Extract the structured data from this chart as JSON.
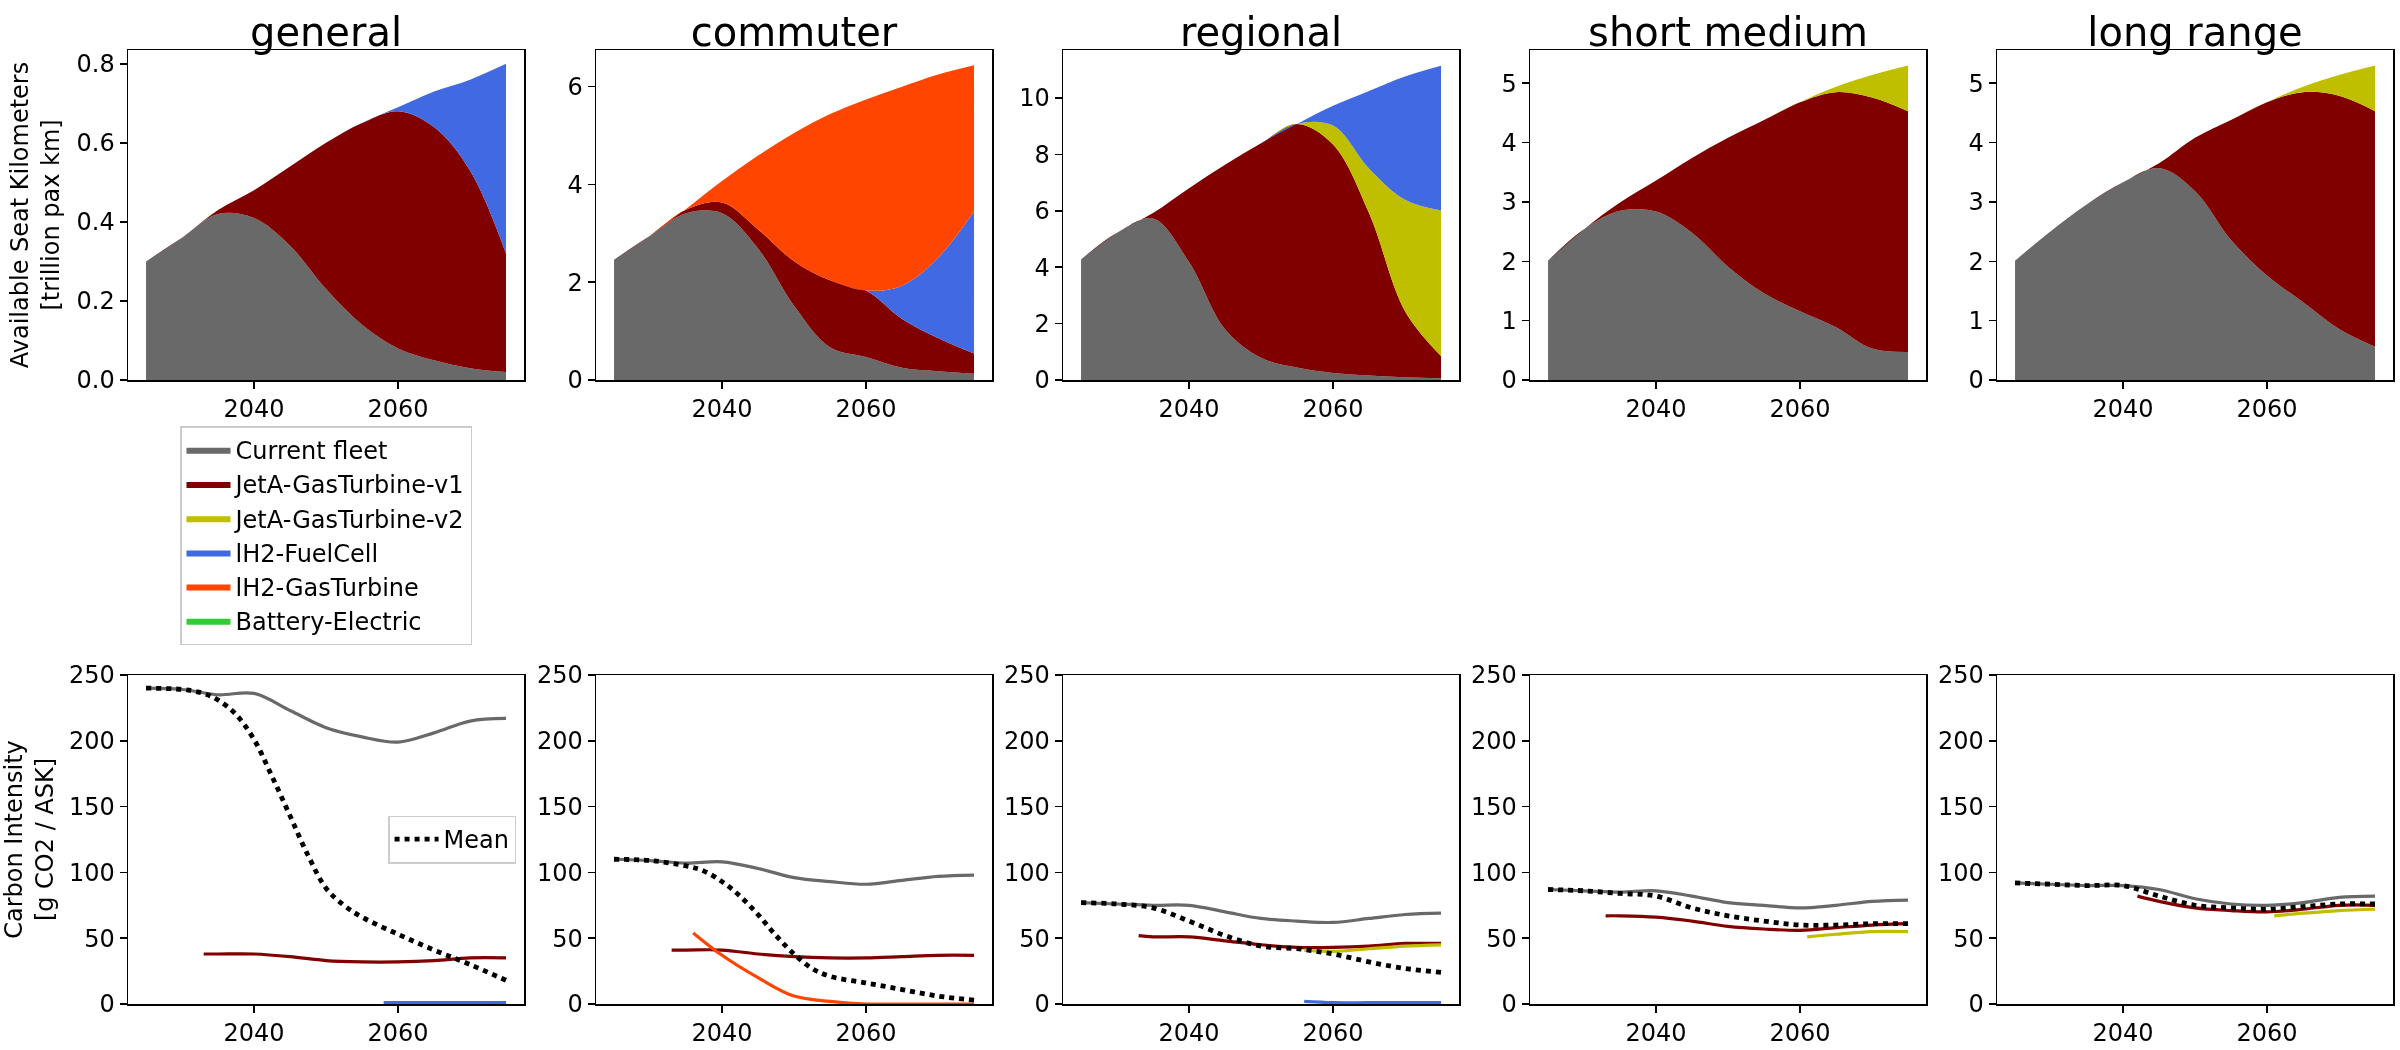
{
  "chart_data": [
    {
      "type": "area",
      "stacked": true,
      "title": "general",
      "ylabel": "Available Seat Kilometers\n[trillion pax km]",
      "x": [
        "2025",
        "2030",
        "2035",
        "2040",
        "2045",
        "2050",
        "2055",
        "2060",
        "2065",
        "2070",
        "2075"
      ],
      "xlim": [
        "2022-07",
        "2077-07"
      ],
      "xticks": [
        "2040",
        "2060"
      ],
      "ylim": [
        0,
        0.835
      ],
      "yticks": [
        {
          "value": 0,
          "label": "0.0"
        },
        0.2,
        0.4,
        0.6,
        0.8
      ],
      "legend": "bottom",
      "series": [
        {
          "name": "Current fleet",
          "color": "#696969",
          "values": [
            0.3,
            0.36,
            0.42,
            0.41,
            0.34,
            0.23,
            0.14,
            0.08,
            0.05,
            0.03,
            0.02
          ]
        },
        {
          "name": "JetA-GasTurbine-v1",
          "color": "#800000",
          "values": [
            0,
            0,
            0.01,
            0.07,
            0.2,
            0.37,
            0.51,
            0.6,
            0.59,
            0.5,
            0.3
          ]
        },
        {
          "name": "JetA-GasTurbine-v2",
          "color": "#bfbf00",
          "values": [
            null,
            null,
            null,
            null,
            null,
            null,
            null,
            null,
            null,
            null,
            null
          ]
        },
        {
          "name": "lH2-FuelCell",
          "color": "#4169e1",
          "values": [
            0,
            0,
            0,
            0,
            0,
            0,
            0,
            0.01,
            0.09,
            0.23,
            0.48
          ]
        },
        {
          "name": "lH2-GasTurbine",
          "color": "#ff4500",
          "values": [
            null,
            null,
            null,
            null,
            null,
            null,
            null,
            null,
            null,
            null,
            null
          ]
        },
        {
          "name": "Battery-Electric",
          "color": "#32cd32",
          "values": [
            null,
            null,
            null,
            null,
            null,
            null,
            null,
            null,
            null,
            null,
            null
          ]
        }
      ]
    },
    {
      "type": "area",
      "stacked": true,
      "title": "commuter",
      "x": [
        "2025",
        "2030",
        "2035",
        "2040",
        "2045",
        "2050",
        "2055",
        "2060",
        "2065",
        "2070",
        "2075"
      ],
      "xlim": [
        "2022-07",
        "2077-07"
      ],
      "xticks": [
        "2040",
        "2060"
      ],
      "ylim": [
        0,
        6.75
      ],
      "yticks": [
        0,
        2,
        4,
        6
      ],
      "series": [
        {
          "color": "#696969",
          "values": [
            2.46,
            2.95,
            3.41,
            3.41,
            2.69,
            1.52,
            0.67,
            0.47,
            0.25,
            0.18,
            0.13
          ]
        },
        {
          "color": "#800000",
          "values": [
            0,
            0,
            0.07,
            0.22,
            0.39,
            0.91,
            1.37,
            1.36,
            1.0,
            0.68,
            0.41
          ]
        },
        {
          "color": "#4169e1",
          "values": [
            0,
            0,
            0,
            0,
            0,
            0,
            0,
            0,
            0.68,
            1.64,
            2.91
          ]
        },
        {
          "color": "#ff4500",
          "values": [
            0,
            0,
            0.02,
            0.44,
            1.51,
            2.62,
            3.4,
            3.91,
            4.07,
            3.75,
            2.99
          ]
        }
      ]
    },
    {
      "type": "area",
      "stacked": true,
      "title": "regional",
      "x": [
        "2025",
        "2030",
        "2035",
        "2040",
        "2045",
        "2050",
        "2055",
        "2060",
        "2065",
        "2070",
        "2075"
      ],
      "xlim": [
        "2022-07",
        "2077-07"
      ],
      "xticks": [
        "2040",
        "2060"
      ],
      "ylim": [
        0,
        11.7
      ],
      "yticks": [
        0,
        2,
        4,
        6,
        8,
        10
      ],
      "series": [
        {
          "color": "#696969",
          "values": [
            4.27,
            5.22,
            5.73,
            4.18,
            1.8,
            0.79,
            0.44,
            0.25,
            0.16,
            0.1,
            0.06
          ]
        },
        {
          "color": "#800000",
          "values": [
            0,
            0,
            0.19,
            2.62,
            5.83,
            7.6,
            8.64,
            8.1,
            5.76,
            2.34,
            0.79
          ]
        },
        {
          "color": "#bfbf00",
          "values": [
            0,
            0,
            0,
            0,
            0,
            0,
            0,
            0.67,
            1.58,
            3.95,
            5.16
          ]
        },
        {
          "color": "#4169e1",
          "values": [
            0,
            0,
            0,
            0,
            0,
            0,
            0,
            0.7,
            2.75,
            4.37,
            5.13
          ]
        }
      ]
    },
    {
      "type": "area",
      "stacked": true,
      "title": "short medium",
      "x": [
        "2025",
        "2030",
        "2035",
        "2040",
        "2045",
        "2050",
        "2055",
        "2060",
        "2065",
        "2070",
        "2075"
      ],
      "xlim": [
        "2022-07",
        "2077-07"
      ],
      "xticks": [
        "2040",
        "2060"
      ],
      "ylim": [
        0,
        5.56
      ],
      "yticks": [
        0,
        1,
        2,
        3,
        4,
        5
      ],
      "series": [
        {
          "color": "#696969",
          "values": [
            2.01,
            2.54,
            2.85,
            2.84,
            2.48,
            1.91,
            1.46,
            1.16,
            0.89,
            0.53,
            0.47
          ]
        },
        {
          "color": "#800000",
          "values": [
            0,
            0,
            0.14,
            0.52,
            1.26,
            2.17,
            2.92,
            3.52,
            3.96,
            4.23,
            4.06
          ]
        },
        {
          "color": "#bfbf00",
          "values": [
            0,
            0,
            0,
            0,
            0,
            0,
            0,
            0,
            0.09,
            0.38,
            0.77
          ]
        }
      ]
    },
    {
      "type": "area",
      "stacked": true,
      "title": "long range",
      "x": [
        "2025",
        "2030",
        "2035",
        "2040",
        "2045",
        "2050",
        "2055",
        "2060",
        "2065",
        "2070",
        "2075"
      ],
      "xlim": [
        "2022-07",
        "2077-07"
      ],
      "xticks": [
        "2040",
        "2060"
      ],
      "ylim": [
        0,
        5.56
      ],
      "yticks": [
        0,
        1,
        2,
        3,
        4,
        5
      ],
      "series": [
        {
          "color": "#696969",
          "values": [
            2.01,
            2.51,
            2.96,
            3.33,
            3.57,
            3.18,
            2.36,
            1.76,
            1.31,
            0.86,
            0.56
          ]
        },
        {
          "color": "#800000",
          "values": [
            0,
            0,
            0,
            0,
            0.08,
            0.9,
            2.02,
            2.92,
            3.54,
            3.93,
            3.97
          ]
        },
        {
          "color": "#bfbf00",
          "values": [
            0,
            0,
            0,
            0,
            0,
            0,
            0,
            0,
            0.09,
            0.35,
            0.77
          ]
        }
      ]
    },
    {
      "type": "line",
      "ylabel": "Carbon Intensity\n[g CO2 / ASK]",
      "x": [
        "2025",
        "2030",
        "2035",
        "2040",
        "2045",
        "2050",
        "2055",
        "2060",
        "2065",
        "2070",
        "2075"
      ],
      "xlim": [
        "2022-07",
        "2077-07"
      ],
      "xticks": [
        "2040",
        "2060"
      ],
      "ylim": [
        0,
        250
      ],
      "yticks": [
        0,
        50,
        100,
        150,
        200,
        250
      ],
      "legend": "right",
      "series": [
        {
          "color": "#696969",
          "values": [
            240,
            239,
            235,
            236,
            223,
            210,
            203,
            199,
            206,
            215,
            217
          ]
        },
        {
          "color": "#800000",
          "x": [
            "2033",
            "2035",
            "2040",
            "2045",
            "2050",
            "2055",
            "2060",
            "2065",
            "2070",
            "2075"
          ],
          "values": [
            38,
            38,
            38,
            36,
            33,
            32,
            32,
            33,
            35,
            35
          ]
        },
        {
          "color": "#4169e1",
          "x": [
            "2058",
            "2065",
            "2075"
          ],
          "values": [
            1,
            1,
            1
          ]
        },
        {
          "name": "Mean",
          "color": "#000000",
          "line_style": "dotted",
          "x": [
            "2025",
            "2030",
            "2033",
            "2035",
            "2037-07",
            "2040",
            "2042-07",
            "2045",
            "2047-07",
            "2050",
            "2052-07",
            "2055",
            "2060",
            "2065",
            "2070",
            "2075"
          ],
          "values": [
            240,
            239,
            236,
            231,
            220,
            201,
            173,
            143,
            113,
            88,
            75,
            66,
            53,
            41,
            30,
            18
          ]
        }
      ]
    },
    {
      "type": "line",
      "x": [
        "2025",
        "2030",
        "2035",
        "2040",
        "2045",
        "2050",
        "2055",
        "2060",
        "2065",
        "2070",
        "2075"
      ],
      "xlim": [
        "2022-07",
        "2077-07"
      ],
      "xticks": [
        "2040",
        "2060"
      ],
      "ylim": [
        0,
        250
      ],
      "yticks": [
        0,
        50,
        100,
        150,
        200,
        250
      ],
      "series": [
        {
          "color": "#696969",
          "values": [
            110,
            109,
            107,
            108,
            103,
            96,
            93,
            91,
            94,
            97,
            98
          ]
        },
        {
          "color": "#800000",
          "x": [
            "2033",
            "2035",
            "2040",
            "2045",
            "2050",
            "2055",
            "2060",
            "2065",
            "2070",
            "2075"
          ],
          "values": [
            41,
            41,
            41,
            38,
            36,
            35,
            35,
            36,
            37,
            37
          ]
        },
        {
          "color": "#ff4500",
          "x": [
            "2036",
            "2040",
            "2045",
            "2050",
            "2055",
            "2060",
            "2065",
            "2070",
            "2075"
          ],
          "values": [
            54,
            37,
            20,
            6,
            2,
            0,
            0,
            0,
            0
          ]
        },
        {
          "color": "#000000",
          "line_style": "dotted",
          "x": [
            "2025",
            "2030",
            "2035",
            "2037-07",
            "2040",
            "2042-07",
            "2045",
            "2047-07",
            "2050",
            "2052-07",
            "2055",
            "2060",
            "2065",
            "2070",
            "2075"
          ],
          "values": [
            110,
            109,
            105,
            101,
            93,
            82,
            68,
            52,
            38,
            27,
            21,
            16,
            11,
            6,
            3
          ]
        }
      ]
    },
    {
      "type": "line",
      "x": [
        "2025",
        "2030",
        "2035",
        "2040",
        "2045",
        "2050",
        "2055",
        "2060",
        "2065",
        "2070",
        "2075"
      ],
      "xlim": [
        "2022-07",
        "2077-07"
      ],
      "xticks": [
        "2040",
        "2060"
      ],
      "ylim": [
        0,
        250
      ],
      "yticks": [
        0,
        50,
        100,
        150,
        200,
        250
      ],
      "series": [
        {
          "color": "#696969",
          "values": [
            77,
            76,
            75,
            75,
            70,
            65,
            63,
            62,
            65,
            68,
            69
          ]
        },
        {
          "color": "#800000",
          "x": [
            "2033",
            "2035",
            "2040",
            "2045",
            "2050",
            "2055",
            "2060",
            "2065",
            "2070",
            "2075"
          ],
          "values": [
            52,
            51,
            51,
            48,
            45,
            43,
            43,
            44,
            46,
            46
          ]
        },
        {
          "color": "#bfbf00",
          "x": [
            "2056",
            "2060",
            "2065",
            "2070",
            "2075"
          ],
          "values": [
            41,
            40,
            42,
            44,
            45
          ]
        },
        {
          "color": "#4169e1",
          "x": [
            "2056",
            "2060",
            "2065",
            "2070",
            "2075"
          ],
          "values": [
            2,
            1,
            1,
            1,
            1
          ]
        },
        {
          "color": "#000000",
          "line_style": "dotted",
          "values": [
            77,
            76,
            73,
            63,
            52,
            44,
            42,
            38,
            32,
            27,
            24
          ]
        }
      ]
    },
    {
      "type": "line",
      "x": [
        "2025",
        "2030",
        "2035",
        "2040",
        "2045",
        "2050",
        "2055",
        "2060",
        "2065",
        "2070",
        "2075"
      ],
      "xlim": [
        "2022-07",
        "2077-07"
      ],
      "xticks": [
        "2040",
        "2060"
      ],
      "ylim": [
        0,
        250
      ],
      "yticks": [
        0,
        50,
        100,
        150,
        200,
        250
      ],
      "series": [
        {
          "color": "#696969",
          "values": [
            87,
            86,
            85,
            86,
            82,
            77,
            75,
            73,
            75,
            78,
            79
          ]
        },
        {
          "color": "#800000",
          "x": [
            "2033",
            "2035",
            "2040",
            "2045",
            "2050",
            "2055",
            "2060",
            "2065",
            "2070",
            "2075"
          ],
          "values": [
            67,
            67,
            66,
            63,
            59,
            57,
            56,
            58,
            60,
            61
          ]
        },
        {
          "color": "#bfbf00",
          "x": [
            "2061",
            "2065",
            "2070",
            "2075"
          ],
          "values": [
            51,
            53,
            55,
            55
          ]
        },
        {
          "color": "#000000",
          "line_style": "dotted",
          "values": [
            87,
            86,
            84,
            82,
            73,
            67,
            63,
            60,
            60,
            61,
            61
          ]
        }
      ]
    },
    {
      "type": "line",
      "x": [
        "2025",
        "2030",
        "2035",
        "2040",
        "2045",
        "2050",
        "2055",
        "2060",
        "2065",
        "2070",
        "2075"
      ],
      "xlim": [
        "2022-07",
        "2077-07"
      ],
      "xticks": [
        "2040",
        "2060"
      ],
      "ylim": [
        0,
        250
      ],
      "yticks": [
        0,
        50,
        100,
        150,
        200,
        250
      ],
      "series": [
        {
          "color": "#696969",
          "values": [
            92,
            91,
            90,
            90,
            87,
            80,
            76,
            75,
            77,
            81,
            82
          ]
        },
        {
          "color": "#800000",
          "x": [
            "2042",
            "2045",
            "2050",
            "2055",
            "2060",
            "2065",
            "2070",
            "2075"
          ],
          "values": [
            82,
            78,
            73,
            71,
            70,
            72,
            75,
            75
          ]
        },
        {
          "color": "#bfbf00",
          "x": [
            "2061",
            "2065",
            "2070",
            "2075"
          ],
          "values": [
            67,
            69,
            71,
            72
          ]
        },
        {
          "color": "#000000",
          "line_style": "dotted",
          "values": [
            92,
            91,
            90,
            90,
            82,
            75,
            73,
            72,
            74,
            76,
            76
          ]
        }
      ]
    }
  ]
}
